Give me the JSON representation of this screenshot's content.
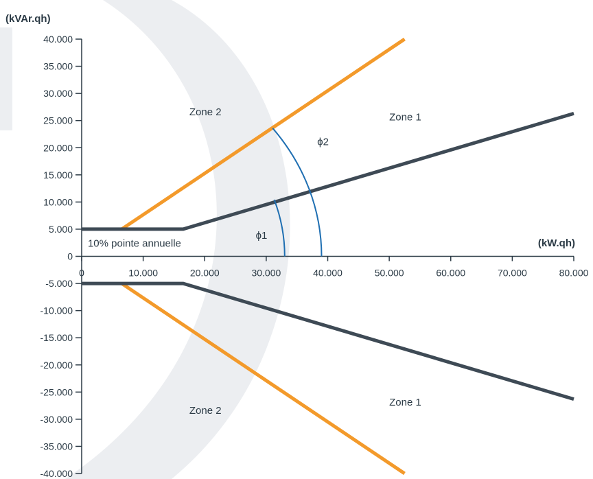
{
  "chart_data": {
    "type": "line",
    "xlabel": "(kW.qh)",
    "ylabel": "(kVAr.qh)",
    "xlim": [
      0,
      80000
    ],
    "ylim": [
      -40000,
      40000
    ],
    "x_ticks": [
      "0",
      "10.000",
      "20.000",
      "30.000",
      "40.000",
      "50.000",
      "60.000",
      "70.000",
      "80.000"
    ],
    "x_tick_values": [
      0,
      10000,
      20000,
      30000,
      40000,
      50000,
      60000,
      70000,
      80000
    ],
    "y_ticks": [
      "40.000",
      "35.000",
      "30.000",
      "25.000",
      "20.000",
      "15.000",
      "10.000",
      "5.000",
      "0",
      "-5.000",
      "-10.000",
      "-15.000",
      "-20.000",
      "-25.000",
      "-30.000",
      "-35.000",
      "-40.000"
    ],
    "y_tick_values": [
      40000,
      35000,
      30000,
      25000,
      20000,
      15000,
      10000,
      5000,
      0,
      -5000,
      -10000,
      -15000,
      -20000,
      -25000,
      -30000,
      -35000,
      -40000
    ],
    "series": [
      {
        "color": "#f39a2b",
        "points": [
          [
            6500,
            5000
          ],
          [
            52500,
            40000
          ]
        ]
      },
      {
        "color": "#f39a2b",
        "points": [
          [
            6500,
            -5000
          ],
          [
            52500,
            -40000
          ]
        ]
      },
      {
        "color": "#3e4a55",
        "points": [
          [
            0,
            5000
          ],
          [
            16500,
            5000
          ],
          [
            80000,
            26300
          ]
        ]
      },
      {
        "color": "#3e4a55",
        "points": [
          [
            0,
            -5000
          ],
          [
            16500,
            -5000
          ],
          [
            80000,
            -26300
          ]
        ]
      }
    ],
    "arcs": [
      {
        "name": "phi1-arc",
        "color": "#1f6fb2",
        "radius": 33000,
        "from_angle_deg": 0,
        "to_angle_deg": 18.43
      },
      {
        "name": "phi2-arc",
        "color": "#1f6fb2",
        "radius": 39000,
        "from_angle_deg": 0,
        "to_angle_deg": 37.23
      }
    ],
    "annotations": [
      {
        "name": "zone2-upper",
        "text": "Zone 2",
        "x": 17500,
        "y": 26000
      },
      {
        "name": "zone1-upper",
        "text": "Zone 1",
        "x": 50000,
        "y": 25000
      },
      {
        "name": "zone2-lower",
        "text": "Zone 2",
        "x": 17500,
        "y": -29000
      },
      {
        "name": "zone1-lower",
        "text": "Zone 1",
        "x": 50000,
        "y": -27500
      },
      {
        "name": "phi1-label",
        "text": "ϕ1",
        "x": 28300,
        "y": 3200
      },
      {
        "name": "phi2-label",
        "text": "ϕ2",
        "x": 38300,
        "y": 20500
      },
      {
        "name": "pointe-label",
        "text": "10% pointe annuelle",
        "x": 1000,
        "y": 1800
      }
    ],
    "grid": false,
    "colors": {
      "orange": "#f39a2b",
      "dark": "#3e4a55",
      "arc": "#1f6fb2",
      "text": "#2b3a45",
      "watermark": "#eceef1"
    }
  }
}
